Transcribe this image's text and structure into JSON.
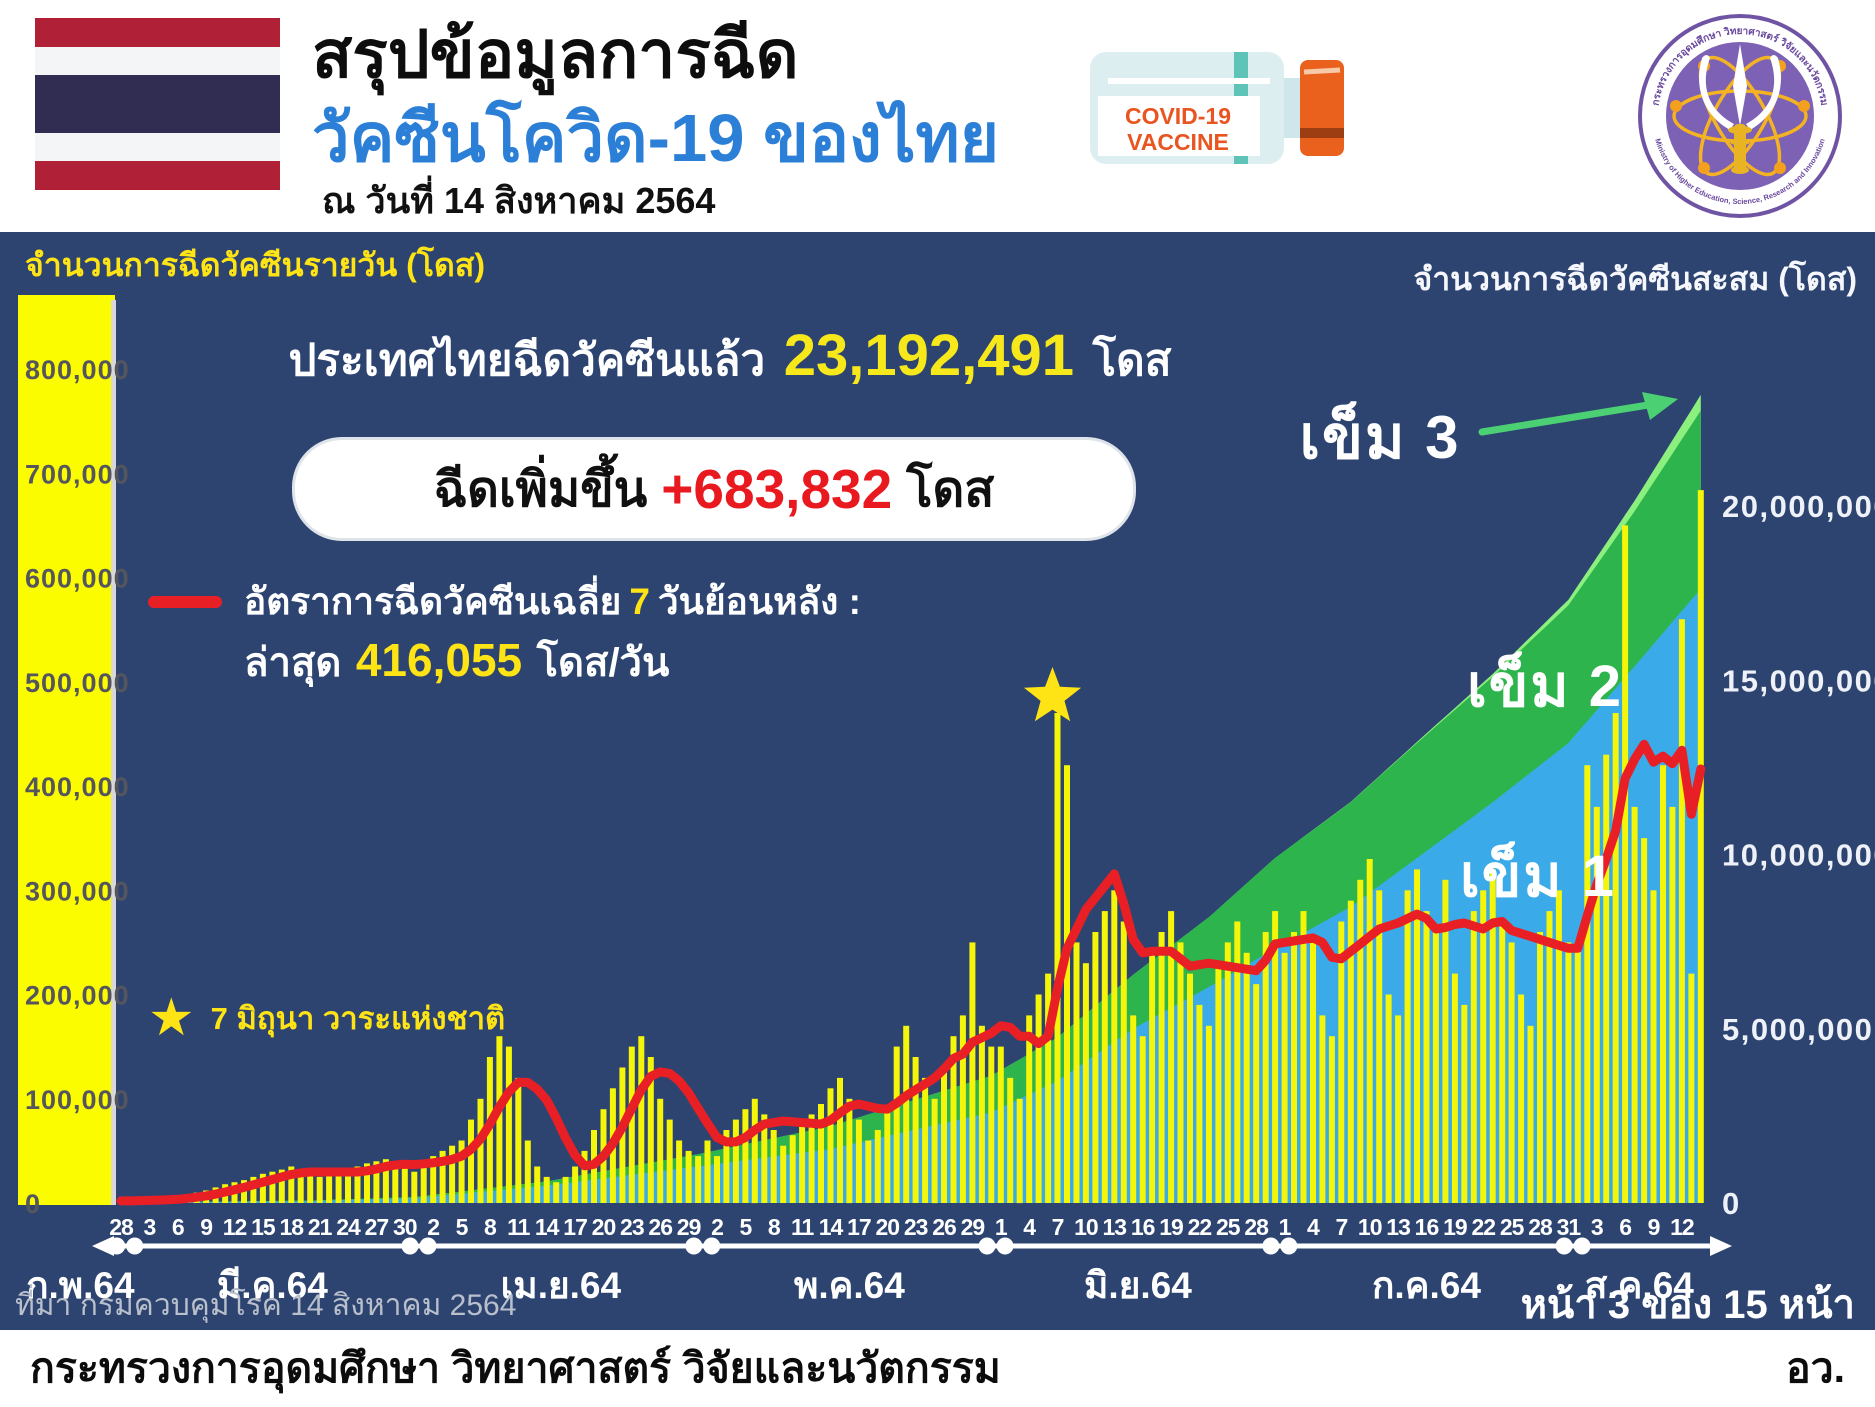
{
  "header": {
    "title_line1": "สรุปข้อมูลการฉีด",
    "title_line2": "วัคซีนโควิด-19 ของไทย",
    "as_of_date": "ณ วันที่ 14 สิงหาคม 2564",
    "vaccine_vial": {
      "label_line1": "COVID-19",
      "label_line2": "VACCINE"
    },
    "ministry_logo": {
      "text_top": "กระทรวงการอุดมศึกษา วิทยาศาสตร์ วิจัยและนวัตกรรม",
      "text_bottom": "Ministry of Higher Education, Science, Research and Innovation"
    }
  },
  "stats": {
    "total_prefix": "ประเทศไทยฉีดวัคซีนแล้ว",
    "total_value": "23,192,491",
    "total_unit": "โดส",
    "increase_label": "ฉีดเพิ่มขึ้น",
    "increase_value": "+683,832",
    "increase_unit": "โดส",
    "avg_legend_prefix": "อัตราการฉีดวัคซีนเฉลี่ย",
    "avg_legend_days": "7",
    "avg_legend_suffix": "วันย้อนหลัง :",
    "avg_latest_label": "ล่าสุด",
    "avg_latest_value": "416,055",
    "avg_latest_unit": "โดส/วัน",
    "star_note": "7 มิถุนา วาระแห่งชาติ"
  },
  "footer": {
    "source": "ที่มา กรมควบคุมโรค 14 สิงหาคม 2564",
    "page": "หน้า 3 ของ 15 หน้า",
    "ministry": "กระทรวงการอุดมศึกษา วิทยาศาสตร์ วิจัยและนวัตกรรม",
    "ministry_abbr": "อว."
  },
  "colors": {
    "navy_bg": "#2d4471",
    "bar_yellow": "#f5f50a",
    "band_yellow": "#fcfc00",
    "red_line": "#e81f25",
    "area_dose1_blue": "#3aabe8",
    "area_dose2_green": "#2eb44d",
    "area_dose3_lightgreen": "#8cf07e",
    "title_blue": "#2b7fd6",
    "text_yellow": "#ffe415",
    "flag_red": "#b02137",
    "flag_navy": "#312d52",
    "vial_orange": "#e9611c",
    "logo_purple": "#7d61b5",
    "logo_gold": "#f3b322"
  },
  "chart_data": {
    "type": "bar+line+stacked-area",
    "left_axis": {
      "title": "จำนวนการฉีดวัคซีนรายวัน (โดส)",
      "unit": "doses per day",
      "tick_labels": [
        "800,000",
        "700,000",
        "600,000",
        "500,000",
        "400,000",
        "300,000",
        "200,000",
        "100,000",
        "0"
      ],
      "tick_values_k": [
        800,
        700,
        600,
        500,
        400,
        300,
        200,
        100,
        0
      ],
      "max_k": 800
    },
    "right_axis": {
      "title": "จำนวนการฉีดวัคซีนสะสม (โดส)",
      "unit": "cumulative doses",
      "tick_labels": [
        "20,000,000",
        "15,000,000",
        "10,000,000",
        "5,000,000",
        "0"
      ],
      "tick_values_m": [
        20,
        15,
        10,
        5,
        0
      ]
    },
    "months": [
      {
        "label": "ก.พ.64",
        "start": 0,
        "end": 0,
        "center": -4.3
      },
      {
        "label": "มี.ค.64",
        "start": 1,
        "end": 31,
        "center": 16
      },
      {
        "label": "เม.ย.64",
        "start": 32,
        "end": 61,
        "center": 46.5
      },
      {
        "label": "พ.ค.64",
        "start": 62,
        "end": 92,
        "center": 77
      },
      {
        "label": "มิ.ย.64",
        "start": 93,
        "end": 122,
        "center": 107.5
      },
      {
        "label": "ก.ค.64",
        "start": 123,
        "end": 153,
        "center": 138
      },
      {
        "label": "ส.ค.64",
        "start": 154,
        "end": 167,
        "center": 160.5
      }
    ],
    "x_tick_step_days": 3,
    "x_tick_labels": [
      "28",
      "3",
      "6",
      "9",
      "12",
      "15",
      "18",
      "21",
      "24",
      "27",
      "30",
      "2",
      "5",
      "8",
      "11",
      "14",
      "17",
      "20",
      "23",
      "26",
      "29",
      "2",
      "5",
      "8",
      "11",
      "14",
      "17",
      "20",
      "23",
      "26",
      "29",
      "1",
      "4",
      "7",
      "10",
      "13",
      "16",
      "19",
      "22",
      "25",
      "28",
      "1",
      "4",
      "7",
      "10",
      "13",
      "16",
      "19",
      "22",
      "25",
      "28",
      "31",
      "3",
      "6",
      "9",
      "12"
    ],
    "daily_doses_k": [
      2,
      2,
      3,
      3,
      4,
      5,
      6,
      8,
      10,
      12,
      15,
      18,
      20,
      22,
      25,
      28,
      30,
      32,
      35,
      30,
      28,
      25,
      28,
      30,
      32,
      35,
      38,
      40,
      42,
      38,
      35,
      30,
      40,
      45,
      50,
      55,
      60,
      80,
      100,
      140,
      160,
      150,
      120,
      60,
      35,
      25,
      20,
      25,
      35,
      50,
      70,
      90,
      110,
      130,
      150,
      160,
      140,
      100,
      80,
      60,
      50,
      45,
      60,
      45,
      70,
      80,
      90,
      100,
      85,
      70,
      55,
      65,
      75,
      85,
      95,
      110,
      120,
      100,
      80,
      60,
      70,
      90,
      150,
      170,
      140,
      120,
      100,
      130,
      160,
      180,
      250,
      170,
      150,
      150,
      120,
      100,
      180,
      200,
      220,
      470,
      420,
      250,
      230,
      260,
      280,
      300,
      270,
      180,
      160,
      240,
      260,
      280,
      250,
      220,
      190,
      170,
      230,
      250,
      270,
      240,
      210,
      260,
      280,
      240,
      260,
      280,
      250,
      180,
      160,
      270,
      290,
      310,
      330,
      300,
      200,
      180,
      300,
      320,
      280,
      260,
      310,
      220,
      190,
      280,
      300,
      320,
      270,
      250,
      200,
      170,
      260,
      280,
      300,
      250,
      250,
      420,
      380,
      430,
      470,
      650,
      380,
      350,
      300,
      420,
      380,
      560,
      220,
      683.832
    ],
    "red_line": "trailing 7-day average of daily_doses_k; latest shown value 416,055 doses/day",
    "star_day_index": 99,
    "cumulative_keyframes_m": [
      {
        "i": 0,
        "d1": 0.01,
        "d2": 0,
        "d3": 0
      },
      {
        "i": 20,
        "d1": 0.06,
        "d2": 0.01,
        "d3": 0
      },
      {
        "i": 31,
        "d1": 0.14,
        "d2": 0.03,
        "d3": 0
      },
      {
        "i": 45,
        "d1": 0.5,
        "d2": 0.12,
        "d3": 0
      },
      {
        "i": 61,
        "d1": 1.05,
        "d2": 0.35,
        "d3": 0
      },
      {
        "i": 75,
        "d1": 1.55,
        "d2": 0.65,
        "d3": 0
      },
      {
        "i": 92,
        "d1": 2.6,
        "d2": 1.05,
        "d3": 0
      },
      {
        "i": 99,
        "d1": 3.5,
        "d2": 1.25,
        "d3": 0
      },
      {
        "i": 107,
        "d1": 5.0,
        "d2": 1.55,
        "d3": 0
      },
      {
        "i": 115,
        "d1": 6.2,
        "d2": 2.0,
        "d3": 0
      },
      {
        "i": 122,
        "d1": 7.3,
        "d2": 2.6,
        "d3": 0
      },
      {
        "i": 130,
        "d1": 8.5,
        "d2": 3.0,
        "d3": 0.01
      },
      {
        "i": 137,
        "d1": 9.9,
        "d2": 3.3,
        "d3": 0.03
      },
      {
        "i": 145,
        "d1": 11.5,
        "d2": 3.6,
        "d3": 0.08
      },
      {
        "i": 153,
        "d1": 13.2,
        "d2": 3.95,
        "d3": 0.16
      },
      {
        "i": 160,
        "d1": 15.4,
        "d2": 4.45,
        "d3": 0.3
      },
      {
        "i": 167,
        "d1": 17.63,
        "d2": 5.11,
        "d3": 0.45
      }
    ],
    "annotations": {
      "dose3_label": "เข็ม 3",
      "dose2_label": "เข็ม 2",
      "dose1_label": "เข็ม 1"
    }
  }
}
